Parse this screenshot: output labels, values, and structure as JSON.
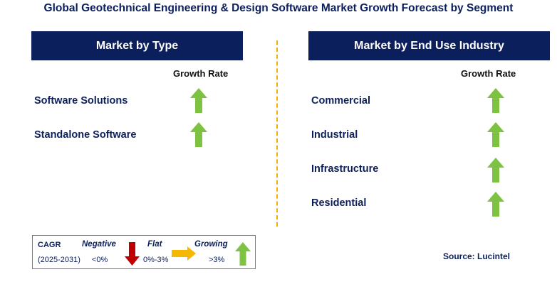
{
  "title": "Global Geotechnical Engineering & Design Software Market Growth Forecast by Segment",
  "left_panel": {
    "header": "Market by Type",
    "growth_rate_label": "Growth Rate",
    "segments": [
      {
        "label": "Software Solutions",
        "trend": "growing"
      },
      {
        "label": "Standalone Software",
        "trend": "growing"
      }
    ]
  },
  "right_panel": {
    "header": "Market by End Use Industry",
    "growth_rate_label": "Growth Rate",
    "segments": [
      {
        "label": "Commercial",
        "trend": "growing"
      },
      {
        "label": "Industrial",
        "trend": "growing"
      },
      {
        "label": "Infrastructure",
        "trend": "growing"
      },
      {
        "label": "Residential",
        "trend": "growing"
      }
    ]
  },
  "legend": {
    "cagr_label": "CAGR",
    "period": "(2025-2031)",
    "negative": {
      "label": "Negative",
      "range": "<0%"
    },
    "flat": {
      "label": "Flat",
      "range": "0%-3%"
    },
    "growing": {
      "label": "Growing",
      "range": ">3%"
    }
  },
  "source": "Source: Lucintel",
  "colors": {
    "header_bg": "#0b1f5c",
    "growing_arrow": "#7dc242",
    "negative_arrow": "#c00000",
    "flat_arrow": "#f5b800",
    "divider": "#f0b000"
  }
}
